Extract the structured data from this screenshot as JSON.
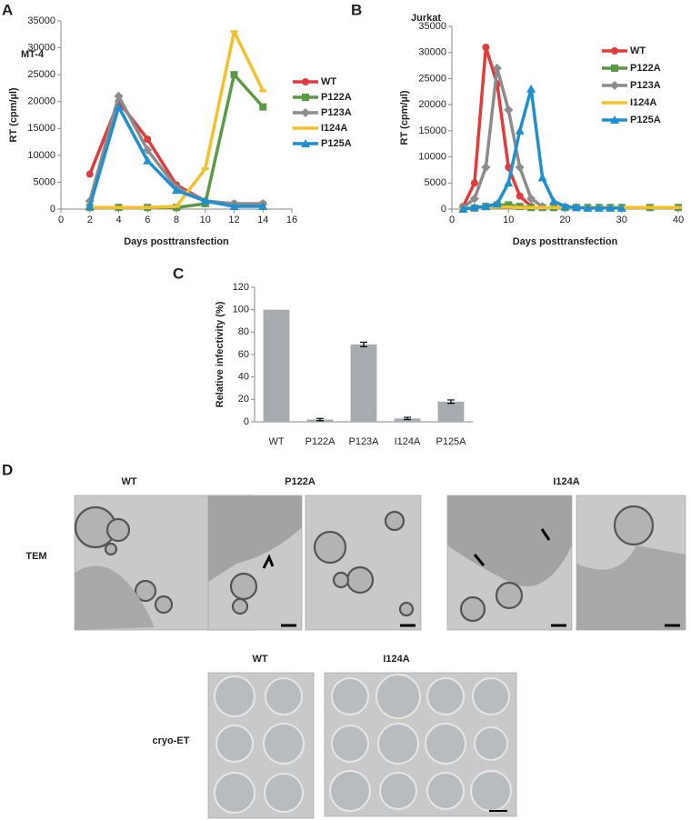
{
  "chart_data": [
    {
      "type": "line",
      "title": "MT-4",
      "xlabel": "Days posttransfection",
      "ylabel": "RT (cpm/µl)",
      "x": [
        2,
        4,
        6,
        8,
        10,
        12,
        14
      ],
      "series": [
        {
          "name": "WT",
          "color": "#e23b3b",
          "marker": "circle",
          "values": [
            6500,
            20000,
            13000,
            4500,
            1500,
            1000,
            1000
          ]
        },
        {
          "name": "P122A",
          "color": "#5b9a45",
          "marker": "square",
          "values": [
            300,
            300,
            300,
            300,
            1000,
            25000,
            19000
          ]
        },
        {
          "name": "P123A",
          "color": "#8c8c8c",
          "marker": "diamond",
          "values": [
            1500,
            21000,
            11000,
            4000,
            1500,
            1000,
            1000
          ]
        },
        {
          "name": "I124A",
          "color": "#f5c12b",
          "marker": "dash",
          "values": [
            300,
            300,
            300,
            500,
            7500,
            33000,
            22000
          ]
        },
        {
          "name": "P125A",
          "color": "#1f8fd0",
          "marker": "triangle",
          "values": [
            500,
            19000,
            9000,
            3500,
            1500,
            500,
            500
          ]
        }
      ],
      "xlim": [
        0,
        16
      ],
      "xticks": [
        0,
        2,
        4,
        6,
        8,
        10,
        12,
        14,
        16
      ],
      "ylim": [
        0,
        35000
      ],
      "yticks": [
        0,
        5000,
        10000,
        15000,
        20000,
        25000,
        30000,
        35000
      ]
    },
    {
      "type": "line",
      "title": "Jurkat",
      "xlabel": "Days posttransfection",
      "ylabel": "RT (cpm/µl)",
      "x": [
        2,
        4,
        6,
        8,
        10,
        12,
        14,
        16,
        18,
        20,
        22,
        24,
        26,
        28,
        30,
        35,
        40
      ],
      "series": [
        {
          "name": "WT",
          "color": "#e23b3b",
          "marker": "circle",
          "values": [
            500,
            5000,
            31000,
            24000,
            8000,
            2500,
            500,
            null,
            null,
            null,
            null,
            null,
            null,
            null,
            null,
            null,
            null
          ]
        },
        {
          "name": "P122A",
          "color": "#5b9a45",
          "marker": "square",
          "values": [
            0,
            200,
            500,
            800,
            800,
            500,
            300,
            300,
            300,
            300,
            300,
            300,
            300,
            300,
            300,
            300,
            300
          ]
        },
        {
          "name": "P123A",
          "color": "#8c8c8c",
          "marker": "diamond",
          "values": [
            300,
            2000,
            8000,
            27000,
            19000,
            8000,
            2000,
            500,
            null,
            null,
            null,
            null,
            null,
            null,
            null,
            null,
            null
          ]
        },
        {
          "name": "I124A",
          "color": "#f5c12b",
          "marker": "dash",
          "values": [
            0,
            200,
            300,
            400,
            400,
            300,
            300,
            300,
            300,
            300,
            300,
            300,
            300,
            300,
            300,
            300,
            300
          ]
        },
        {
          "name": "P125A",
          "color": "#1f8fd0",
          "marker": "triangle",
          "values": [
            0,
            300,
            500,
            1000,
            5000,
            15000,
            23000,
            6000,
            1500,
            500,
            300,
            200,
            200,
            200,
            200,
            null,
            null
          ]
        }
      ],
      "xlim": [
        0,
        40
      ],
      "xticks": [
        0,
        10,
        20,
        30,
        40
      ],
      "ylim": [
        0,
        35000
      ],
      "yticks": [
        0,
        5000,
        10000,
        15000,
        20000,
        25000,
        30000,
        35000
      ]
    },
    {
      "type": "bar",
      "ylabel": "Relative infectivity (%)",
      "categories": [
        "WT",
        "P122A",
        "P123A",
        "I124A",
        "P125A"
      ],
      "values": [
        100,
        2,
        69,
        3,
        18
      ],
      "errors": [
        0,
        1,
        2,
        1,
        1.5
      ],
      "color": "#a7aaae",
      "ylim": [
        0,
        120
      ],
      "yticks": [
        0,
        20,
        40,
        60,
        80,
        100,
        120
      ]
    }
  ],
  "panel_labels": [
    "A",
    "B",
    "C",
    "D"
  ],
  "panel_d": {
    "tem_titles": [
      "WT",
      "P122A",
      "I124A"
    ],
    "tem_label": "TEM",
    "cryo_titles": [
      "WT",
      "I124A"
    ],
    "cryo_label": "cryo-ET"
  }
}
